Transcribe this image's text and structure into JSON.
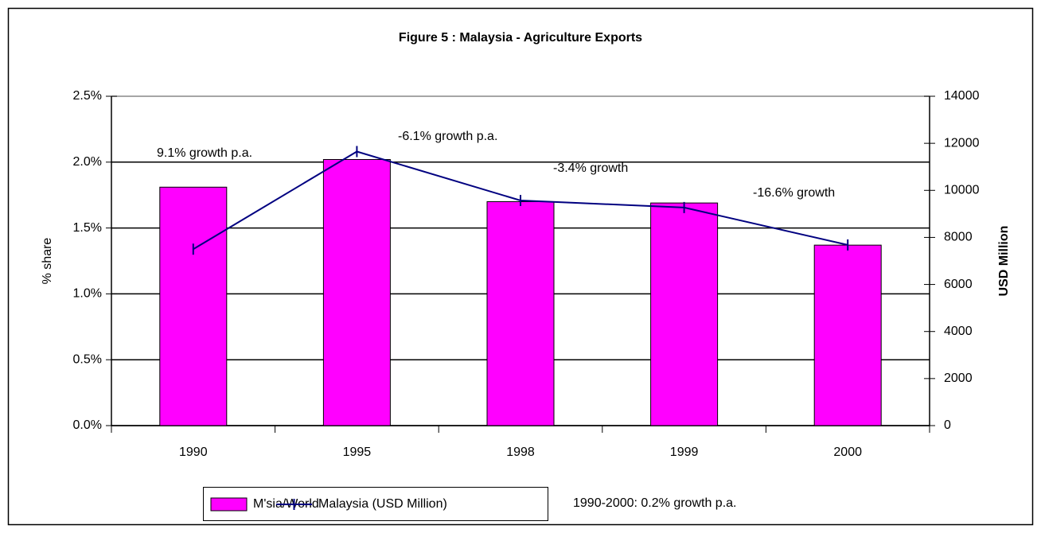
{
  "chart_data": {
    "type": "bar",
    "title": "Figure 5 : Malaysia -  Agriculture Exports",
    "categories": [
      "1990",
      "1995",
      "1998",
      "1999",
      "2000"
    ],
    "series": [
      {
        "name": "M'sia/World",
        "color": "#ff00ff",
        "values": [
          1.81,
          2.02,
          1.7,
          1.69,
          1.37
        ]
      },
      {
        "name": "Malaysia (USD Million)",
        "color": "#000080",
        "type": "line",
        "axis": "y2",
        "values": [
          7500,
          11650,
          9570,
          9270,
          7680
        ]
      }
    ],
    "y_label": "% share",
    "y2_label": "USD Million",
    "ylim": [
      0,
      2.5
    ],
    "yticks": [
      {
        "value": 0,
        "label": "0.0%"
      },
      {
        "value": 0.5,
        "label": "0.5%"
      },
      {
        "value": 1,
        "label": "1.0%"
      },
      {
        "value": 1.5,
        "label": "1.5%"
      },
      {
        "value": 2,
        "label": "2.0%"
      },
      {
        "value": 2.5,
        "label": "2.5%"
      }
    ],
    "y2lim": [
      0,
      14000
    ],
    "y2ticks": [
      0,
      2000,
      4000,
      6000,
      8000,
      10000,
      12000,
      14000
    ],
    "grid": true,
    "legend": "bottom",
    "annotations": [
      "9.1% growth p.a.",
      "-6.1% growth p.a.",
      "-3.4% growth",
      "-16.6% growth",
      "1990-2000: 0.2% growth p.a."
    ]
  }
}
